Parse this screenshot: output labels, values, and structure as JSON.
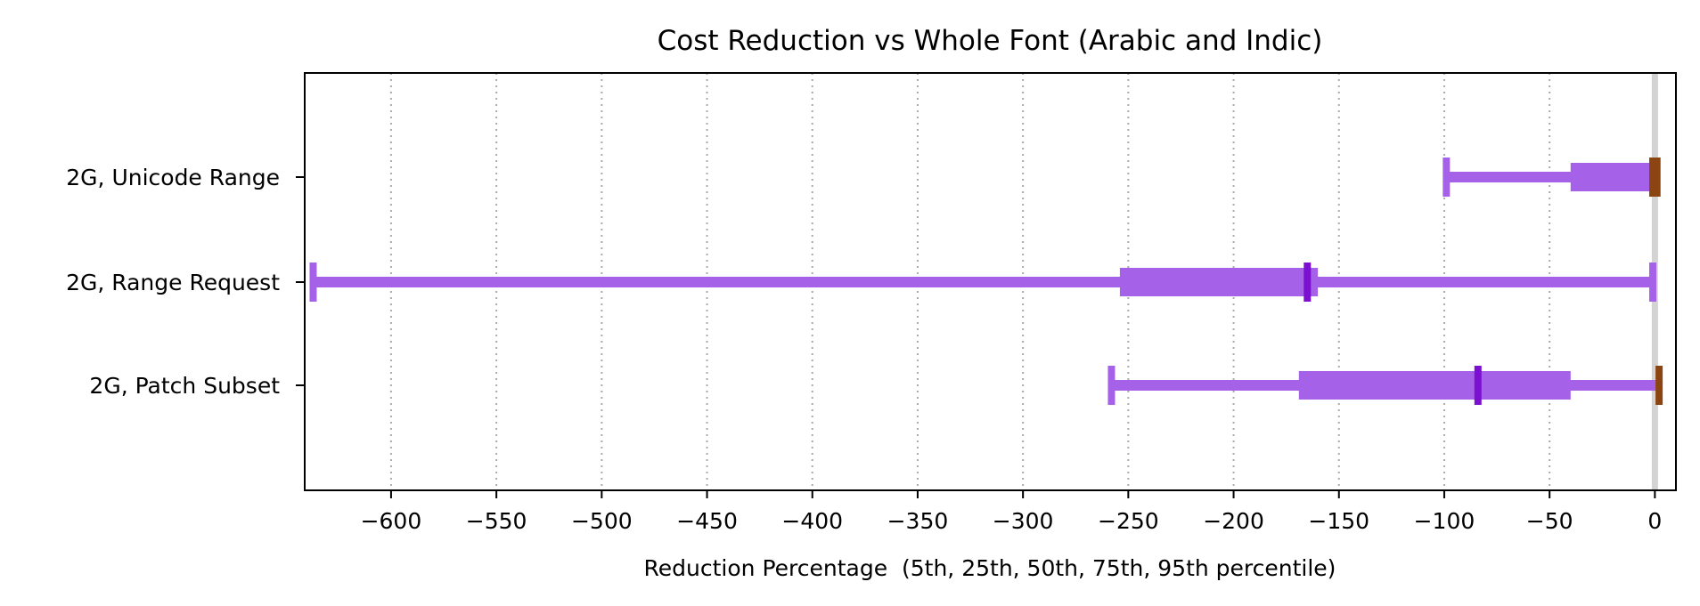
{
  "chart_data": {
    "type": "box",
    "title": "Cost Reduction vs Whole Font (Arabic and Indic)",
    "xlabel": "Reduction Percentage  (5th, 25th, 50th, 75th, 95th percentile)",
    "ylabel": "",
    "xlim": [
      -641,
      10
    ],
    "xticks": [
      -600,
      -550,
      -500,
      -450,
      -400,
      -350,
      -300,
      -250,
      -200,
      -150,
      -100,
      -50,
      0
    ],
    "xtick_labels": [
      "−600",
      "−550",
      "−500",
      "−450",
      "−400",
      "−350",
      "−300",
      "−250",
      "−200",
      "−150",
      "−100",
      "−50",
      "0"
    ],
    "grid": "x dotted",
    "categories": [
      "2G, Unicode Range",
      "2G, Range Request",
      "2G, Patch Subset"
    ],
    "series": [
      {
        "p5": -99,
        "p25": -40,
        "p50": -1,
        "p75": -1,
        "p95": 1,
        "median_color": "#8b4513",
        "p95_color": "#8b4513"
      },
      {
        "p5": -637,
        "p25": -254,
        "p50": -165,
        "p75": -160,
        "p95": -1,
        "median_color": "#7b10d0",
        "p95_color": "#a562e8"
      },
      {
        "p5": -258,
        "p25": -169,
        "p50": -84,
        "p75": -40,
        "p95": 2,
        "median_color": "#7b10d0",
        "p95_color": "#8b4513"
      }
    ],
    "colors": {
      "box": "#a562e8",
      "zero_line": "#d3d3d3",
      "grid": "#aaaaaa",
      "axis": "#000000"
    }
  }
}
